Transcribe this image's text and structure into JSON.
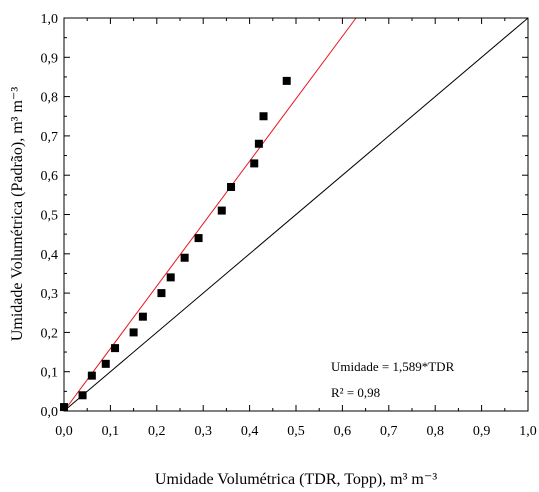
{
  "chart_data": {
    "type": "scatter",
    "title": "",
    "xlabel": "Umidade Volumétrica (TDR, Topp), m³ m⁻³",
    "ylabel": "Umidade Volumétrica (Padrão), m³ m⁻³",
    "xlim": [
      0.0,
      1.0
    ],
    "ylim": [
      0.0,
      1.0
    ],
    "x_ticks": [
      "0,0",
      "0,1",
      "0,2",
      "0,3",
      "0,4",
      "0,5",
      "0,6",
      "0,7",
      "0,8",
      "0,9",
      "1,0"
    ],
    "y_ticks": [
      "0,0",
      "0,1",
      "0,2",
      "0,3",
      "0,4",
      "0,5",
      "0,6",
      "0,7",
      "0,8",
      "0,9",
      "1,0"
    ],
    "grid": false,
    "series": [
      {
        "marker": "square",
        "color": "#000000",
        "x": [
          0.0,
          0.04,
          0.06,
          0.09,
          0.11,
          0.15,
          0.17,
          0.21,
          0.23,
          0.26,
          0.29,
          0.34,
          0.36,
          0.41,
          0.42,
          0.43,
          0.48
        ],
        "y": [
          0.01,
          0.04,
          0.09,
          0.12,
          0.16,
          0.2,
          0.24,
          0.3,
          0.34,
          0.39,
          0.44,
          0.51,
          0.57,
          0.63,
          0.68,
          0.75,
          0.84
        ]
      }
    ],
    "lines": [
      {
        "kind": "fit",
        "slope": 1.589,
        "intercept": 0,
        "color": "#e8131b"
      },
      {
        "kind": "1:1",
        "slope": 1,
        "intercept": 0,
        "color": "#000000"
      }
    ],
    "annotations": {
      "equation": "Umidade = 1,589*TDR",
      "r2": "R² = 0,98"
    }
  }
}
